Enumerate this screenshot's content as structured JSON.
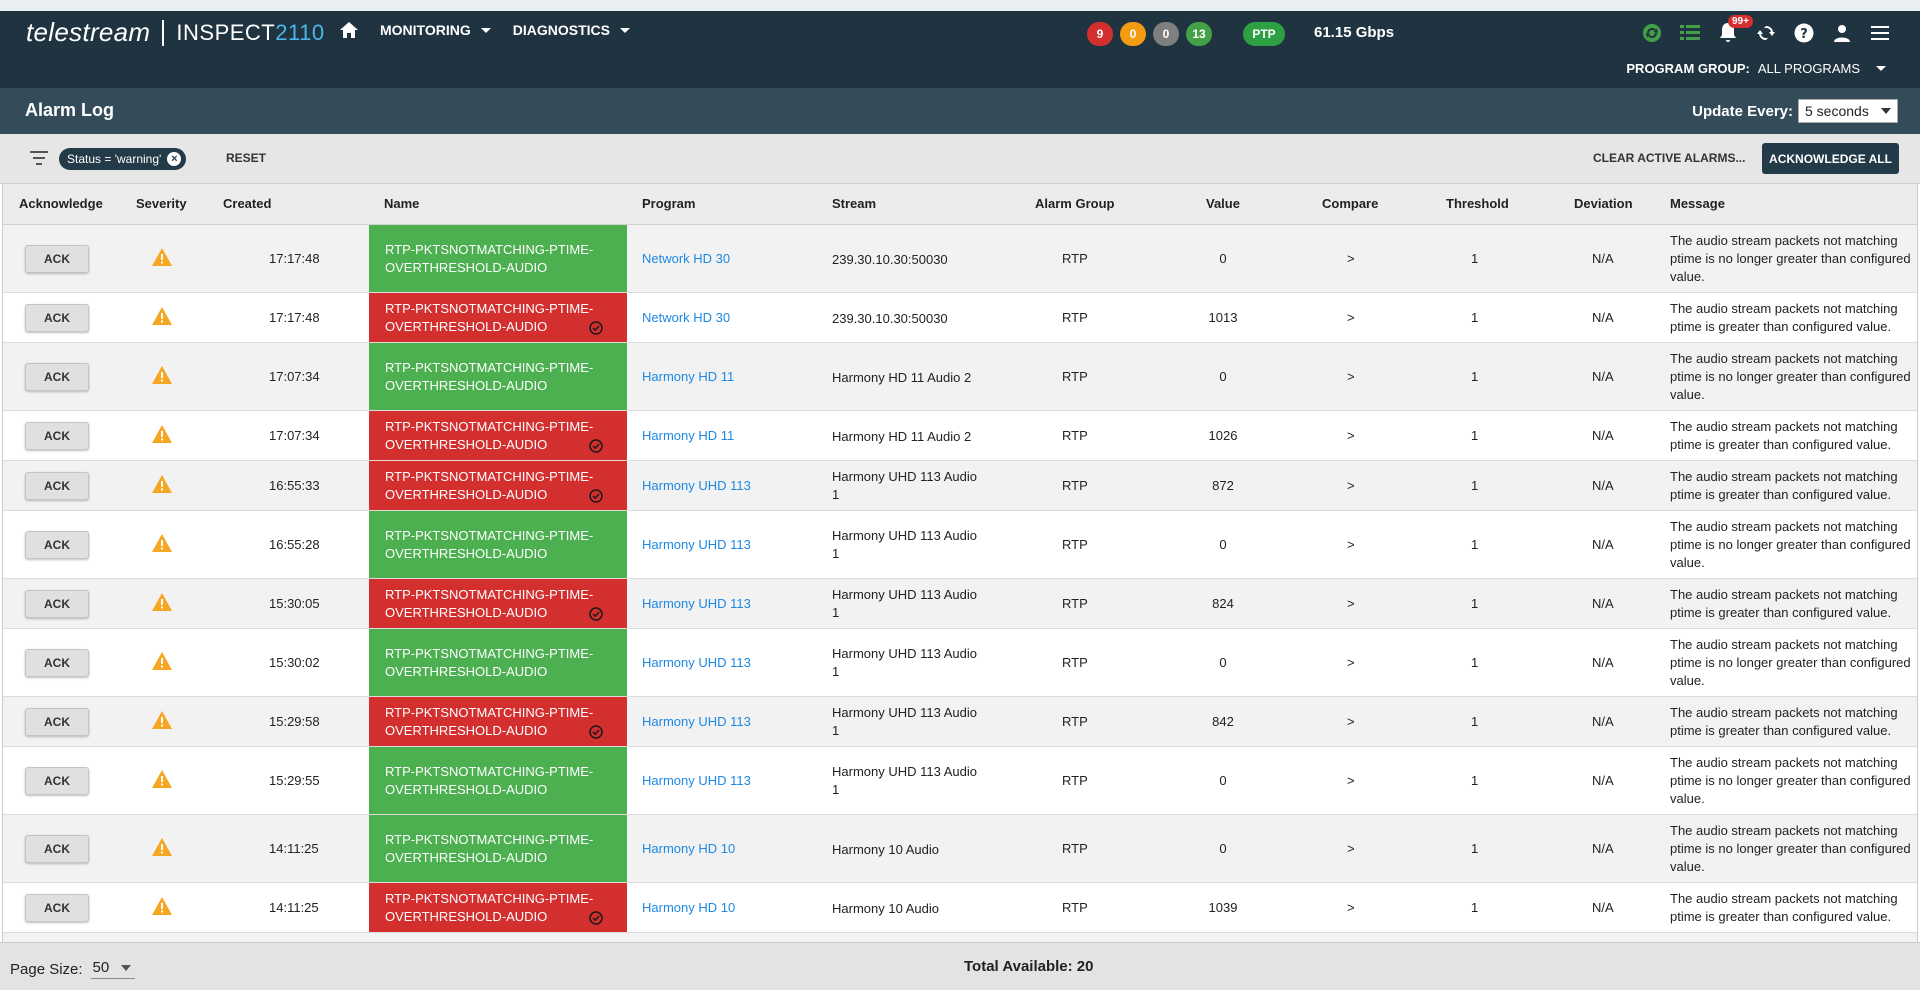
{
  "app": {
    "brand": "telestream",
    "product": "INSPECT",
    "product_num": "2110",
    "nav": [
      {
        "label": "MONITORING"
      },
      {
        "label": "DIAGNOSTICS"
      }
    ],
    "status_counts": [
      {
        "value": "9",
        "color": "#d32f2f"
      },
      {
        "value": "0",
        "color": "#f39c12"
      },
      {
        "value": "0",
        "color": "#7f7f7f"
      },
      {
        "value": "13",
        "color": "#43a047"
      }
    ],
    "ptp_label": "PTP",
    "throughput": "61.15 Gbps",
    "notifications_count": "99+",
    "program_group_label": "PROGRAM GROUP:",
    "program_group_value": "ALL PROGRAMS"
  },
  "page": {
    "title": "Alarm Log",
    "update_label": "Update Every:",
    "update_value": "5 seconds"
  },
  "filters": {
    "chip_label": "Status = 'warning'",
    "reset_label": "RESET",
    "clear_label": "CLEAR ACTIVE ALARMS...",
    "ack_all_label": "ACKNOWLEDGE ALL"
  },
  "table": {
    "columns": [
      "Acknowledge",
      "Severity",
      "Created",
      "Name",
      "Program",
      "Stream",
      "Alarm Group",
      "Value",
      "Compare",
      "Threshold",
      "Deviation",
      "Message"
    ],
    "ack_label": "ACK",
    "rows": [
      {
        "created": "17:17:48",
        "name1": "RTP-PKTSNOTMATCHING-PTIME-",
        "name2": "OVERTHRESHOLD-AUDIO",
        "status": "green",
        "program": "Network HD 30",
        "stream1": "239.30.10.30:50030",
        "stream2": "",
        "group": "RTP",
        "value": "0",
        "compare": ">",
        "threshold": "1",
        "deviation": "N/A",
        "message": "The audio stream packets not matching ptime is no longer greater than configured value."
      },
      {
        "created": "17:17:48",
        "name1": "RTP-PKTSNOTMATCHING-PTIME-",
        "name2": "OVERTHRESHOLD-AUDIO",
        "status": "red",
        "program": "Network HD 30",
        "stream1": "239.30.10.30:50030",
        "stream2": "",
        "group": "RTP",
        "value": "1013",
        "compare": ">",
        "threshold": "1",
        "deviation": "N/A",
        "message": "The audio stream packets not matching ptime is greater than configured value."
      },
      {
        "created": "17:07:34",
        "name1": "RTP-PKTSNOTMATCHING-PTIME-",
        "name2": "OVERTHRESHOLD-AUDIO",
        "status": "green",
        "program": "Harmony HD 11",
        "stream1": "Harmony HD 11 Audio 2",
        "stream2": "",
        "group": "RTP",
        "value": "0",
        "compare": ">",
        "threshold": "1",
        "deviation": "N/A",
        "message": "The audio stream packets not matching ptime is no longer greater than configured value."
      },
      {
        "created": "17:07:34",
        "name1": "RTP-PKTSNOTMATCHING-PTIME-",
        "name2": "OVERTHRESHOLD-AUDIO",
        "status": "red",
        "program": "Harmony HD 11",
        "stream1": "Harmony HD 11 Audio 2",
        "stream2": "",
        "group": "RTP",
        "value": "1026",
        "compare": ">",
        "threshold": "1",
        "deviation": "N/A",
        "message": "The audio stream packets not matching ptime is greater than configured value."
      },
      {
        "created": "16:55:33",
        "name1": "RTP-PKTSNOTMATCHING-PTIME-",
        "name2": "OVERTHRESHOLD-AUDIO",
        "status": "red",
        "program": "Harmony UHD 113",
        "stream1": "Harmony UHD 113 Audio",
        "stream2": "1",
        "group": "RTP",
        "value": "872",
        "compare": ">",
        "threshold": "1",
        "deviation": "N/A",
        "message": "The audio stream packets not matching ptime is greater than configured value."
      },
      {
        "created": "16:55:28",
        "name1": "RTP-PKTSNOTMATCHING-PTIME-",
        "name2": "OVERTHRESHOLD-AUDIO",
        "status": "green",
        "program": "Harmony UHD 113",
        "stream1": "Harmony UHD 113 Audio",
        "stream2": "1",
        "group": "RTP",
        "value": "0",
        "compare": ">",
        "threshold": "1",
        "deviation": "N/A",
        "message": "The audio stream packets not matching ptime is no longer greater than configured value."
      },
      {
        "created": "15:30:05",
        "name1": "RTP-PKTSNOTMATCHING-PTIME-",
        "name2": "OVERTHRESHOLD-AUDIO",
        "status": "red",
        "program": "Harmony UHD 113",
        "stream1": "Harmony UHD 113 Audio",
        "stream2": "1",
        "group": "RTP",
        "value": "824",
        "compare": ">",
        "threshold": "1",
        "deviation": "N/A",
        "message": "The audio stream packets not matching ptime is greater than configured value."
      },
      {
        "created": "15:30:02",
        "name1": "RTP-PKTSNOTMATCHING-PTIME-",
        "name2": "OVERTHRESHOLD-AUDIO",
        "status": "green",
        "program": "Harmony UHD 113",
        "stream1": "Harmony UHD 113 Audio",
        "stream2": "1",
        "group": "RTP",
        "value": "0",
        "compare": ">",
        "threshold": "1",
        "deviation": "N/A",
        "message": "The audio stream packets not matching ptime is no longer greater than configured value."
      },
      {
        "created": "15:29:58",
        "name1": "RTP-PKTSNOTMATCHING-PTIME-",
        "name2": "OVERTHRESHOLD-AUDIO",
        "status": "red",
        "program": "Harmony UHD 113",
        "stream1": "Harmony UHD 113 Audio",
        "stream2": "1",
        "group": "RTP",
        "value": "842",
        "compare": ">",
        "threshold": "1",
        "deviation": "N/A",
        "message": "The audio stream packets not matching ptime is greater than configured value."
      },
      {
        "created": "15:29:55",
        "name1": "RTP-PKTSNOTMATCHING-PTIME-",
        "name2": "OVERTHRESHOLD-AUDIO",
        "status": "green",
        "program": "Harmony UHD 113",
        "stream1": "Harmony UHD 113 Audio",
        "stream2": "1",
        "group": "RTP",
        "value": "0",
        "compare": ">",
        "threshold": "1",
        "deviation": "N/A",
        "message": "The audio stream packets not matching ptime is no longer greater than configured value."
      },
      {
        "created": "14:11:25",
        "name1": "RTP-PKTSNOTMATCHING-PTIME-",
        "name2": "OVERTHRESHOLD-AUDIO",
        "status": "green",
        "program": "Harmony HD 10",
        "stream1": "Harmony 10 Audio",
        "stream2": "",
        "group": "RTP",
        "value": "0",
        "compare": ">",
        "threshold": "1",
        "deviation": "N/A",
        "message": "The audio stream packets not matching ptime is no longer greater than configured value."
      },
      {
        "created": "14:11:25",
        "name1": "RTP-PKTSNOTMATCHING-PTIME-",
        "name2": "OVERTHRESHOLD-AUDIO",
        "status": "red",
        "program": "Harmony HD 10",
        "stream1": "Harmony 10 Audio",
        "stream2": "",
        "group": "RTP",
        "value": "1039",
        "compare": ">",
        "threshold": "1",
        "deviation": "N/A",
        "message": "The audio stream packets not matching ptime is greater than configured value."
      }
    ]
  },
  "footer": {
    "page_size_label": "Page Size:",
    "page_size_value": "50",
    "total_label": "Total Available: 20"
  },
  "colors": {
    "nav_bg": "#1f3340",
    "title_bg": "#344b5a",
    "ok_green": "#4caf50",
    "alarm_red": "#d32f2f",
    "warning_orange": "#f5a623",
    "link_blue": "#1e88e5"
  }
}
